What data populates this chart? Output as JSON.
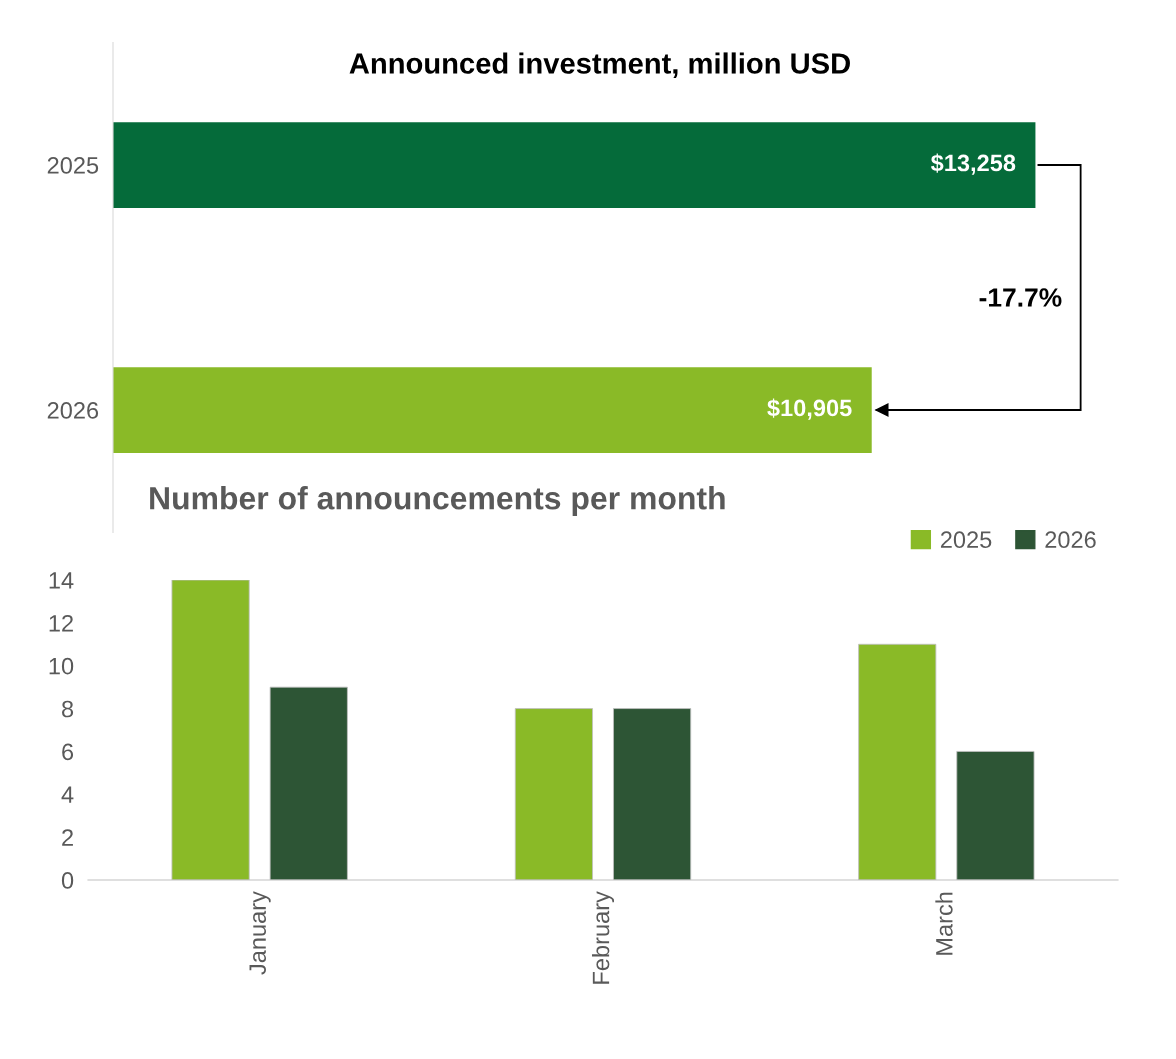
{
  "chart_data": [
    {
      "type": "bar",
      "title": "Announced investment, million USD",
      "orientation": "horizontal",
      "categories": [
        "2025",
        "2026"
      ],
      "values": [
        13258,
        10905
      ],
      "colors": [
        "#056b3a",
        "#8aba27"
      ],
      "value_labels": [
        "$13,258",
        "$10,905"
      ],
      "annotations": [
        "-17.7%"
      ],
      "tick_labels": "y",
      "grid": false,
      "legend": false
    },
    {
      "type": "bar",
      "title": "Number of announcements per month",
      "categories": [
        "January",
        "February",
        "March"
      ],
      "series": [
        {
          "name": "2025",
          "color": "#8aba27",
          "values": [
            14,
            8,
            11
          ]
        },
        {
          "name": "2026",
          "color": "#2d5535",
          "values": [
            9,
            8,
            6
          ]
        }
      ],
      "ylim": [
        0,
        14
      ],
      "yticks": [
        0,
        2,
        4,
        6,
        8,
        10,
        12,
        14
      ],
      "grid": false,
      "legend": "top right"
    }
  ]
}
